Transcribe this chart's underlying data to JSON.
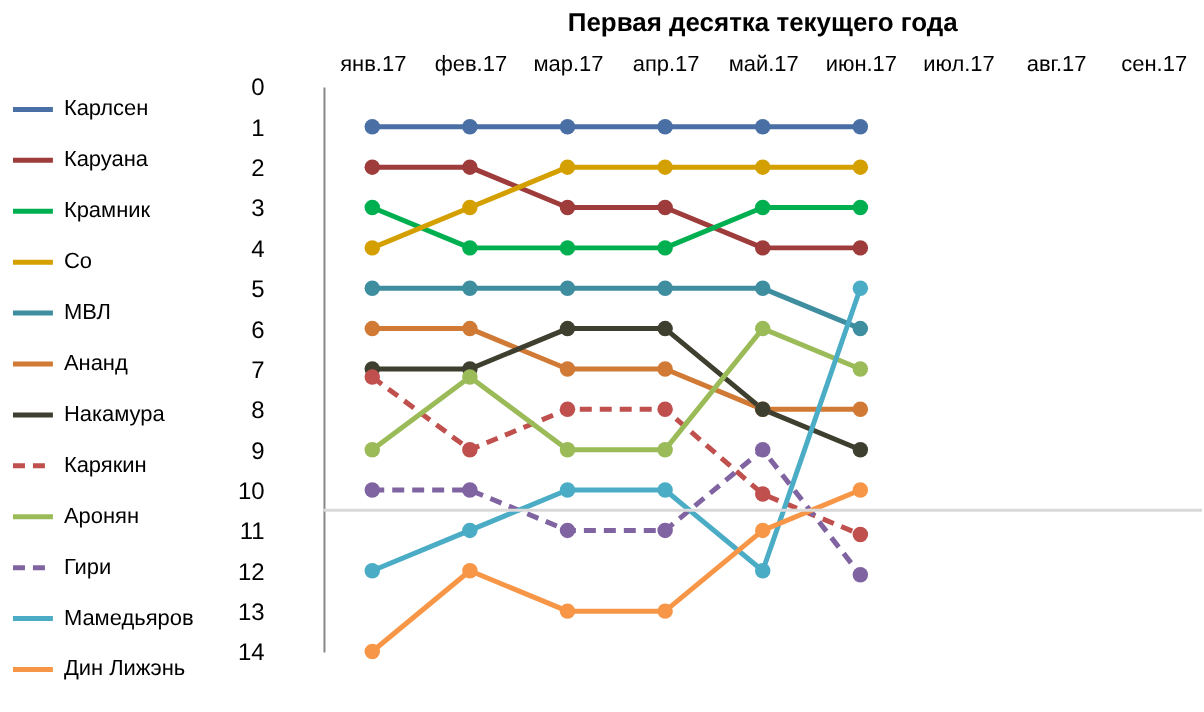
{
  "chart_data": {
    "type": "line",
    "title": "Первая десятка текущего года",
    "categories": [
      "янв.17",
      "фев.17",
      "мар.17",
      "апр.17",
      "май.17",
      "июн.17",
      "июл.17",
      "авг.17",
      "сен.17"
    ],
    "ylim": [
      14,
      0
    ],
    "yticks": [
      0,
      1,
      2,
      3,
      4,
      5,
      6,
      7,
      8,
      9,
      10,
      11,
      12,
      13,
      14
    ],
    "marker": "circle",
    "legend": "left",
    "grid": false,
    "ref_lines": [
      {
        "axis": "y",
        "value": 10.5,
        "label": null,
        "color": "#d9d9d9"
      }
    ],
    "series": [
      {
        "name": "Карлсен",
        "color": "#4a6fa5",
        "values": [
          1,
          1,
          1,
          1,
          1,
          1,
          null,
          null,
          null
        ]
      },
      {
        "name": "Каруана",
        "color": "#9e3b3b",
        "values": [
          2,
          2,
          3,
          3,
          4,
          4,
          null,
          null,
          null
        ]
      },
      {
        "name": "Крамник",
        "color": "#00b050",
        "values": [
          3,
          4,
          4,
          4,
          3,
          3,
          null,
          null,
          null
        ]
      },
      {
        "name": "Со",
        "color": "#d4a000",
        "values": [
          4,
          3,
          2,
          2,
          2,
          2,
          null,
          null,
          null
        ]
      },
      {
        "name": "МВЛ",
        "color": "#3e8ea0",
        "values": [
          5,
          5,
          5,
          5,
          5,
          6,
          null,
          null,
          null
        ]
      },
      {
        "name": "Ананд",
        "color": "#d07a35",
        "values": [
          6,
          6,
          7,
          7,
          8,
          8,
          null,
          null,
          null
        ]
      },
      {
        "name": "Накамура",
        "color": "#3f3f2f",
        "values": [
          7,
          7,
          6,
          6,
          8,
          9,
          null,
          null,
          null
        ]
      },
      {
        "name": "Карякин",
        "color": "#c0504d",
        "line_style": "dashed",
        "values": [
          7.2,
          9,
          8,
          8,
          10.1,
          11.1,
          null,
          null,
          null
        ]
      },
      {
        "name": "Аронян",
        "color": "#9bbb59",
        "values": [
          9,
          7.2,
          9,
          9,
          6,
          7,
          null,
          null,
          null
        ]
      },
      {
        "name": "Гири",
        "color": "#8064a2",
        "line_style": "dashed",
        "values": [
          10,
          10,
          11,
          11,
          9,
          12.1,
          null,
          null,
          null
        ]
      },
      {
        "name": "Мамедьяров",
        "color": "#4bacc6",
        "values": [
          12,
          11,
          10,
          10,
          12,
          5,
          null,
          null,
          null
        ]
      },
      {
        "name": "Дин Лижэнь",
        "color": "#f79646",
        "values": [
          14,
          12,
          13,
          13,
          11,
          10,
          null,
          null,
          null
        ]
      }
    ]
  }
}
